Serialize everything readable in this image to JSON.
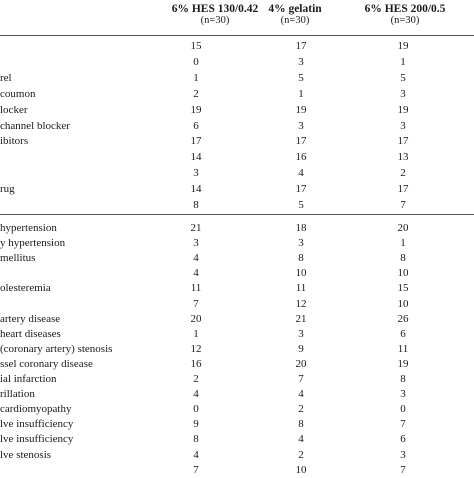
{
  "header": {
    "columns": [
      {
        "title": "6% HES 130/0.42",
        "n": "(n=30)"
      },
      {
        "title": "4% gelatin",
        "n": "(n=30)"
      },
      {
        "title": "6% HES 200/0.5",
        "n": "(n=30)"
      }
    ]
  },
  "section1": [
    {
      "label": "",
      "v": [
        "15",
        "17",
        "19"
      ]
    },
    {
      "label": "",
      "v": [
        "0",
        "3",
        "1"
      ]
    },
    {
      "label": "rel",
      "v": [
        "1",
        "5",
        "5"
      ]
    },
    {
      "label": "coumon",
      "v": [
        "2",
        "1",
        "3"
      ]
    },
    {
      "label": "locker",
      "v": [
        "19",
        "19",
        "19"
      ]
    },
    {
      "label": "channel blocker",
      "v": [
        "6",
        "3",
        "3"
      ]
    },
    {
      "label": "ibitors",
      "v": [
        "17",
        "17",
        "17"
      ]
    },
    {
      "label": "",
      "v": [
        "14",
        "16",
        "13"
      ]
    },
    {
      "label": "",
      "v": [
        "3",
        "4",
        "2"
      ]
    },
    {
      "label": "rug",
      "v": [
        "14",
        "17",
        "17"
      ]
    },
    {
      "label": "",
      "v": [
        "8",
        "5",
        "7"
      ]
    }
  ],
  "section2": [
    {
      "label": "hypertension",
      "v": [
        "21",
        "18",
        "20"
      ]
    },
    {
      "label": "y hypertension",
      "v": [
        "3",
        "3",
        "1"
      ]
    },
    {
      "label": "mellitus",
      "v": [
        "4",
        "8",
        "8"
      ]
    },
    {
      "label": "",
      "v": [
        "4",
        "10",
        "10"
      ]
    },
    {
      "label": "olesteremia",
      "v": [
        "11",
        "11",
        "15"
      ]
    },
    {
      "label": "",
      "v": [
        "7",
        "12",
        "10"
      ]
    },
    {
      "label": "artery disease",
      "v": [
        "20",
        "21",
        "26"
      ]
    },
    {
      "label": "heart diseases",
      "v": [
        "1",
        "3",
        "6"
      ]
    },
    {
      "label": "(coronary artery) stenosis",
      "v": [
        "12",
        "9",
        "11"
      ]
    },
    {
      "label": "ssel coronary disease",
      "v": [
        "16",
        "20",
        "19"
      ]
    },
    {
      "label": "ial infarction",
      "v": [
        "2",
        "7",
        "8"
      ]
    },
    {
      "label": "rillation",
      "v": [
        "4",
        "4",
        "3"
      ]
    },
    {
      "label": "cardiomyopathy",
      "v": [
        "0",
        "2",
        "0"
      ]
    },
    {
      "label": "lve insufficiency",
      "v": [
        "9",
        "8",
        "7"
      ]
    },
    {
      "label": "lve insufficiency",
      "v": [
        "8",
        "4",
        "6"
      ]
    },
    {
      "label": "lve stenosis",
      "v": [
        "4",
        "2",
        "3"
      ]
    },
    {
      "label": "",
      "v": [
        "7",
        "10",
        "7"
      ]
    }
  ]
}
